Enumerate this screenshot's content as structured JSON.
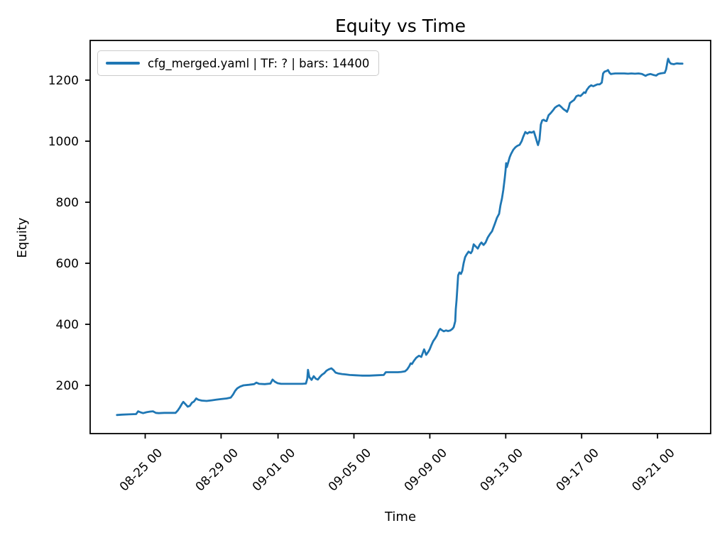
{
  "chart_data": {
    "type": "line",
    "title": "Equity vs Time",
    "xlabel": "Time",
    "ylabel": "Equity",
    "legend_position": "upper left",
    "grid": false,
    "x_unit": "days since 08-23 00:00",
    "xlim": [
      -0.9,
      31.8
    ],
    "ylim": [
      42,
      1330
    ],
    "x_ticks": [
      {
        "v": 2,
        "label": "08-25 00"
      },
      {
        "v": 6,
        "label": "08-29 00"
      },
      {
        "v": 9,
        "label": "09-01 00"
      },
      {
        "v": 13,
        "label": "09-05 00"
      },
      {
        "v": 17,
        "label": "09-09 00"
      },
      {
        "v": 21,
        "label": "09-13 00"
      },
      {
        "v": 25,
        "label": "09-17 00"
      },
      {
        "v": 29,
        "label": "09-21 00"
      }
    ],
    "y_ticks": [
      {
        "v": 200,
        "label": "200"
      },
      {
        "v": 400,
        "label": "400"
      },
      {
        "v": 600,
        "label": "600"
      },
      {
        "v": 800,
        "label": "800"
      },
      {
        "v": 1000,
        "label": "1000"
      },
      {
        "v": 1200,
        "label": "1200"
      }
    ],
    "series": [
      {
        "name": "cfg_merged.yaml | TF: ? | bars: 14400",
        "color": "#1f77b4",
        "points": [
          [
            0.51,
            103
          ],
          [
            0.77,
            104
          ],
          [
            1.14,
            105
          ],
          [
            1.52,
            106
          ],
          [
            1.63,
            115
          ],
          [
            1.74,
            112
          ],
          [
            1.89,
            109
          ],
          [
            2.07,
            112
          ],
          [
            2.26,
            114
          ],
          [
            2.41,
            115
          ],
          [
            2.56,
            110
          ],
          [
            2.71,
            109
          ],
          [
            3.01,
            110
          ],
          [
            3.38,
            110
          ],
          [
            3.6,
            110
          ],
          [
            3.72,
            118
          ],
          [
            3.83,
            128
          ],
          [
            3.94,
            140
          ],
          [
            4.01,
            146
          ],
          [
            4.13,
            138
          ],
          [
            4.24,
            130
          ],
          [
            4.35,
            133
          ],
          [
            4.46,
            143
          ],
          [
            4.57,
            147
          ],
          [
            4.69,
            157
          ],
          [
            4.8,
            153
          ],
          [
            4.98,
            150
          ],
          [
            5.24,
            149
          ],
          [
            5.51,
            151
          ],
          [
            5.73,
            153
          ],
          [
            5.99,
            155
          ],
          [
            6.29,
            157
          ],
          [
            6.51,
            160
          ],
          [
            6.63,
            170
          ],
          [
            6.74,
            182
          ],
          [
            6.85,
            190
          ],
          [
            7.0,
            196
          ],
          [
            7.18,
            200
          ],
          [
            7.48,
            202
          ],
          [
            7.74,
            204
          ],
          [
            7.86,
            209
          ],
          [
            8.01,
            205
          ],
          [
            8.3,
            204
          ],
          [
            8.6,
            206
          ],
          [
            8.71,
            219
          ],
          [
            8.83,
            212
          ],
          [
            8.98,
            207
          ],
          [
            9.16,
            205
          ],
          [
            9.53,
            205
          ],
          [
            9.91,
            205
          ],
          [
            10.28,
            205
          ],
          [
            10.47,
            206
          ],
          [
            10.54,
            222
          ],
          [
            10.58,
            251
          ],
          [
            10.65,
            227
          ],
          [
            10.77,
            218
          ],
          [
            10.88,
            230
          ],
          [
            10.99,
            222
          ],
          [
            11.1,
            219
          ],
          [
            11.21,
            228
          ],
          [
            11.32,
            235
          ],
          [
            11.44,
            240
          ],
          [
            11.55,
            248
          ],
          [
            11.66,
            252
          ],
          [
            11.81,
            256
          ],
          [
            11.92,
            250
          ],
          [
            12.03,
            242
          ],
          [
            12.18,
            239
          ],
          [
            12.37,
            237
          ],
          [
            12.56,
            236
          ],
          [
            12.78,
            234
          ],
          [
            13.08,
            233
          ],
          [
            13.45,
            232
          ],
          [
            13.82,
            232
          ],
          [
            14.2,
            233
          ],
          [
            14.57,
            234
          ],
          [
            14.68,
            243
          ],
          [
            14.94,
            243
          ],
          [
            15.32,
            243
          ],
          [
            15.5,
            244
          ],
          [
            15.69,
            246
          ],
          [
            15.8,
            252
          ],
          [
            15.91,
            262
          ],
          [
            15.99,
            272
          ],
          [
            16.06,
            270
          ],
          [
            16.17,
            281
          ],
          [
            16.28,
            290
          ],
          [
            16.43,
            297
          ],
          [
            16.55,
            293
          ],
          [
            16.62,
            305
          ],
          [
            16.7,
            318
          ],
          [
            16.81,
            300
          ],
          [
            16.92,
            310
          ],
          [
            16.99,
            318
          ],
          [
            17.07,
            330
          ],
          [
            17.18,
            345
          ],
          [
            17.29,
            355
          ],
          [
            17.37,
            363
          ],
          [
            17.48,
            380
          ],
          [
            17.55,
            385
          ],
          [
            17.63,
            381
          ],
          [
            17.74,
            377
          ],
          [
            17.85,
            380
          ],
          [
            17.96,
            378
          ],
          [
            18.08,
            380
          ],
          [
            18.19,
            385
          ],
          [
            18.26,
            391
          ],
          [
            18.34,
            410
          ],
          [
            18.37,
            450
          ],
          [
            18.41,
            480
          ],
          [
            18.45,
            520
          ],
          [
            18.49,
            560
          ],
          [
            18.56,
            570
          ],
          [
            18.64,
            565
          ],
          [
            18.71,
            575
          ],
          [
            18.78,
            600
          ],
          [
            18.86,
            620
          ],
          [
            18.93,
            628
          ],
          [
            19.04,
            638
          ],
          [
            19.16,
            633
          ],
          [
            19.23,
            640
          ],
          [
            19.31,
            662
          ],
          [
            19.42,
            655
          ],
          [
            19.53,
            648
          ],
          [
            19.64,
            662
          ],
          [
            19.72,
            668
          ],
          [
            19.83,
            660
          ],
          [
            19.94,
            668
          ],
          [
            20.05,
            684
          ],
          [
            20.16,
            695
          ],
          [
            20.28,
            705
          ],
          [
            20.43,
            730
          ],
          [
            20.54,
            749
          ],
          [
            20.65,
            762
          ],
          [
            20.72,
            790
          ],
          [
            20.8,
            812
          ],
          [
            20.87,
            840
          ],
          [
            20.95,
            880
          ],
          [
            20.99,
            905
          ],
          [
            21.02,
            928
          ],
          [
            21.06,
            915
          ],
          [
            21.13,
            930
          ],
          [
            21.21,
            948
          ],
          [
            21.28,
            958
          ],
          [
            21.4,
            972
          ],
          [
            21.51,
            980
          ],
          [
            21.62,
            985
          ],
          [
            21.73,
            988
          ],
          [
            21.84,
            1000
          ],
          [
            21.92,
            1014
          ],
          [
            22.03,
            1030
          ],
          [
            22.14,
            1025
          ],
          [
            22.25,
            1030
          ],
          [
            22.37,
            1028
          ],
          [
            22.48,
            1032
          ],
          [
            22.59,
            1010
          ],
          [
            22.66,
            995
          ],
          [
            22.7,
            987
          ],
          [
            22.78,
            1005
          ],
          [
            22.85,
            1055
          ],
          [
            22.92,
            1068
          ],
          [
            23.0,
            1070
          ],
          [
            23.07,
            1067
          ],
          [
            23.15,
            1066
          ],
          [
            23.26,
            1085
          ],
          [
            23.37,
            1092
          ],
          [
            23.48,
            1100
          ],
          [
            23.6,
            1110
          ],
          [
            23.71,
            1115
          ],
          [
            23.82,
            1118
          ],
          [
            23.93,
            1112
          ],
          [
            24.04,
            1105
          ],
          [
            24.16,
            1100
          ],
          [
            24.23,
            1096
          ],
          [
            24.31,
            1108
          ],
          [
            24.38,
            1125
          ],
          [
            24.49,
            1130
          ],
          [
            24.6,
            1135
          ],
          [
            24.72,
            1147
          ],
          [
            24.83,
            1150
          ],
          [
            24.94,
            1148
          ],
          [
            25.01,
            1152
          ],
          [
            25.13,
            1160
          ],
          [
            25.2,
            1158
          ],
          [
            25.27,
            1168
          ],
          [
            25.39,
            1178
          ],
          [
            25.5,
            1183
          ],
          [
            25.61,
            1180
          ],
          [
            25.72,
            1183
          ],
          [
            25.83,
            1186
          ],
          [
            25.95,
            1186
          ],
          [
            26.06,
            1192
          ],
          [
            26.13,
            1222
          ],
          [
            26.21,
            1228
          ],
          [
            26.32,
            1230
          ],
          [
            26.39,
            1233
          ],
          [
            26.47,
            1224
          ],
          [
            26.54,
            1220
          ],
          [
            26.65,
            1221
          ],
          [
            26.77,
            1222
          ],
          [
            26.88,
            1222
          ],
          [
            27.06,
            1222
          ],
          [
            27.25,
            1222
          ],
          [
            27.44,
            1221
          ],
          [
            27.62,
            1222
          ],
          [
            27.81,
            1221
          ],
          [
            28.0,
            1222
          ],
          [
            28.18,
            1220
          ],
          [
            28.37,
            1214
          ],
          [
            28.48,
            1218
          ],
          [
            28.63,
            1220
          ],
          [
            28.78,
            1217
          ],
          [
            28.93,
            1215
          ],
          [
            29.04,
            1220
          ],
          [
            29.15,
            1222
          ],
          [
            29.27,
            1223
          ],
          [
            29.38,
            1224
          ],
          [
            29.45,
            1235
          ],
          [
            29.53,
            1262
          ],
          [
            29.56,
            1270
          ],
          [
            29.64,
            1258
          ],
          [
            29.71,
            1254
          ],
          [
            29.86,
            1252
          ],
          [
            30.01,
            1255
          ],
          [
            30.16,
            1254
          ],
          [
            30.31,
            1254
          ]
        ]
      }
    ]
  }
}
